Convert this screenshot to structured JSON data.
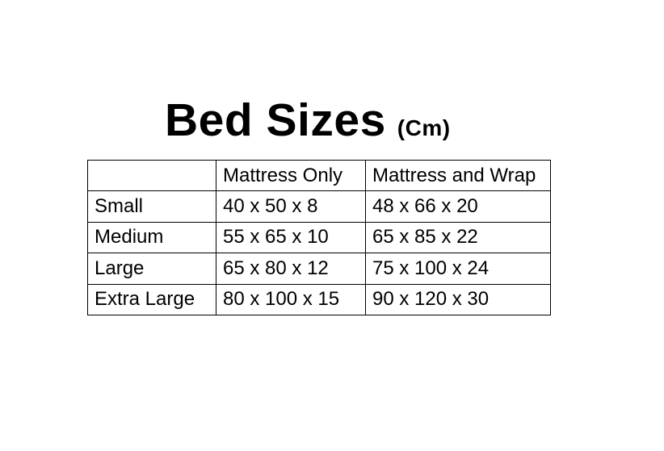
{
  "page": {
    "background_color": "#ffffff",
    "text_color": "#000000",
    "border_color": "#000000"
  },
  "title": {
    "main": "Bed Sizes",
    "unit": "(Cm)"
  },
  "table": {
    "columns": [
      "",
      "Mattress Only",
      "Mattress and Wrap"
    ],
    "rows": [
      [
        "Small",
        "40 x 50 x 8",
        "48 x 66 x 20"
      ],
      [
        "Medium",
        "55 x 65 x 10",
        "65 x 85 x 22"
      ],
      [
        "Large",
        "65 x 80 x 12",
        "75 x 100 x 24"
      ],
      [
        "Extra Large",
        "80 x 100 x 15",
        "90 x 120 x 30"
      ]
    ]
  }
}
